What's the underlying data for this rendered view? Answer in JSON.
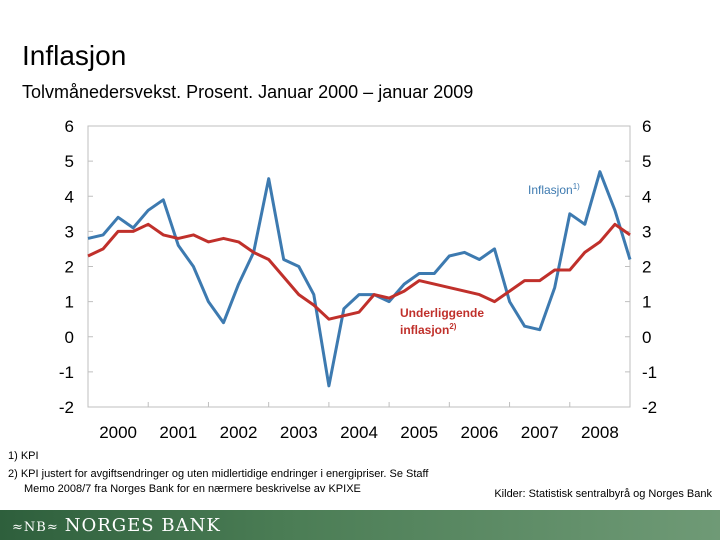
{
  "slide": {
    "title": "Inflasjon",
    "subtitle": "Tolvmånedersvekst. Prosent. Januar 2000 – januar 2009"
  },
  "footnotes": {
    "fn1": "1)  KPI",
    "fn2_line1": "2)  KPI justert for avgiftsendringer og uten midlertidige endringer i energipriser. Se Staff",
    "fn2_line2": "Memo 2008/7 fra Norges Bank for en nærmere beskrivelse av KPIXE"
  },
  "source": "Kilder: Statistisk sentralbyrå og Norges Bank",
  "footer": {
    "logo_text": "≈NB≈",
    "bank_name": "NORGES BANK",
    "color": "#3f6e49"
  },
  "chart_data": {
    "type": "line",
    "x_start": "2000-01",
    "x_end": "2009-01",
    "x_tick_labels": [
      "2000",
      "2001",
      "2002",
      "2003",
      "2004",
      "2005",
      "2006",
      "2007",
      "2008"
    ],
    "ylim": [
      -2,
      6
    ],
    "y_ticks": [
      -2,
      -1,
      0,
      1,
      2,
      3,
      4,
      5,
      6
    ],
    "y_tick_labels": [
      "-2",
      "-1",
      "0",
      "1",
      "2",
      "3",
      "4",
      "5",
      "6"
    ],
    "y_axis_both_sides": true,
    "grid": false,
    "series": [
      {
        "name": "Inflasjon",
        "label_superscript": "1)",
        "color": "#3d7ab0",
        "points": [
          [
            "2000-01",
            2.8
          ],
          [
            "2000-04",
            2.9
          ],
          [
            "2000-07",
            3.4
          ],
          [
            "2000-10",
            3.1
          ],
          [
            "2001-01",
            3.6
          ],
          [
            "2001-04",
            3.9
          ],
          [
            "2001-07",
            2.6
          ],
          [
            "2001-10",
            2.0
          ],
          [
            "2002-01",
            1.0
          ],
          [
            "2002-04",
            0.4
          ],
          [
            "2002-07",
            1.5
          ],
          [
            "2002-10",
            2.4
          ],
          [
            "2003-01",
            4.5
          ],
          [
            "2003-04",
            2.2
          ],
          [
            "2003-07",
            2.0
          ],
          [
            "2003-10",
            1.2
          ],
          [
            "2004-01",
            -1.4
          ],
          [
            "2004-04",
            0.8
          ],
          [
            "2004-07",
            1.2
          ],
          [
            "2004-10",
            1.2
          ],
          [
            "2005-01",
            1.0
          ],
          [
            "2005-04",
            1.5
          ],
          [
            "2005-07",
            1.8
          ],
          [
            "2005-10",
            1.8
          ],
          [
            "2006-01",
            2.3
          ],
          [
            "2006-04",
            2.4
          ],
          [
            "2006-07",
            2.2
          ],
          [
            "2006-10",
            2.5
          ],
          [
            "2007-01",
            1.0
          ],
          [
            "2007-04",
            0.3
          ],
          [
            "2007-07",
            0.2
          ],
          [
            "2007-10",
            1.4
          ],
          [
            "2008-01",
            3.5
          ],
          [
            "2008-04",
            3.2
          ],
          [
            "2008-07",
            4.7
          ],
          [
            "2008-10",
            3.6
          ],
          [
            "2009-01",
            2.2
          ]
        ]
      },
      {
        "name": "Underliggende inflasjon",
        "label_line1": "Underliggende",
        "label_line2": "inflasjon",
        "label_superscript": "2)",
        "color": "#c0302b",
        "points": [
          [
            "2000-01",
            2.3
          ],
          [
            "2000-04",
            2.5
          ],
          [
            "2000-07",
            3.0
          ],
          [
            "2000-10",
            3.0
          ],
          [
            "2001-01",
            3.2
          ],
          [
            "2001-04",
            2.9
          ],
          [
            "2001-07",
            2.8
          ],
          [
            "2001-10",
            2.9
          ],
          [
            "2002-01",
            2.7
          ],
          [
            "2002-04",
            2.8
          ],
          [
            "2002-07",
            2.7
          ],
          [
            "2002-10",
            2.4
          ],
          [
            "2003-01",
            2.2
          ],
          [
            "2003-04",
            1.7
          ],
          [
            "2003-07",
            1.2
          ],
          [
            "2003-10",
            0.9
          ],
          [
            "2004-01",
            0.5
          ],
          [
            "2004-04",
            0.6
          ],
          [
            "2004-07",
            0.7
          ],
          [
            "2004-10",
            1.2
          ],
          [
            "2005-01",
            1.1
          ],
          [
            "2005-04",
            1.3
          ],
          [
            "2005-07",
            1.6
          ],
          [
            "2005-10",
            1.5
          ],
          [
            "2006-01",
            1.4
          ],
          [
            "2006-04",
            1.3
          ],
          [
            "2006-07",
            1.2
          ],
          [
            "2006-10",
            1.0
          ],
          [
            "2007-01",
            1.3
          ],
          [
            "2007-04",
            1.6
          ],
          [
            "2007-07",
            1.6
          ],
          [
            "2007-10",
            1.9
          ],
          [
            "2008-01",
            1.9
          ],
          [
            "2008-04",
            2.4
          ],
          [
            "2008-07",
            2.7
          ],
          [
            "2008-10",
            3.2
          ],
          [
            "2009-01",
            2.9
          ]
        ]
      }
    ]
  }
}
